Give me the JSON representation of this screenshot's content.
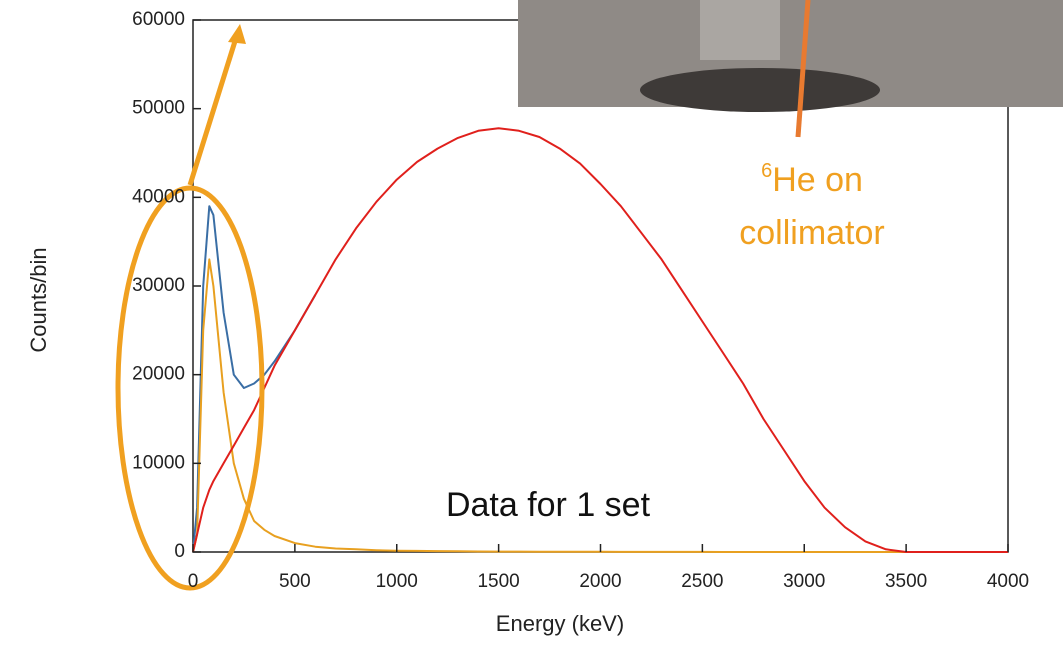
{
  "chart_data": {
    "type": "line",
    "x_label": "Energy (keV)",
    "y_label": "Counts/bin",
    "x": [
      0,
      20,
      50,
      80,
      100,
      150,
      200,
      250,
      300,
      350,
      400,
      500,
      600,
      700,
      800,
      900,
      1000,
      1100,
      1200,
      1300,
      1400,
      1500,
      1600,
      1700,
      1800,
      1900,
      2000,
      2100,
      2200,
      2300,
      2400,
      2500,
      2600,
      2700,
      2800,
      2900,
      3000,
      3100,
      3200,
      3300,
      3400,
      3500,
      4000
    ],
    "series": [
      {
        "color": "#3a6ea5",
        "values": [
          0,
          5000,
          30000,
          39000,
          38000,
          27000,
          20000,
          18500,
          19000,
          20000,
          21500,
          25000,
          29000,
          null,
          null,
          null,
          null,
          null,
          null,
          null,
          null,
          null,
          null,
          null,
          null,
          null,
          null,
          null,
          null,
          null,
          null,
          null,
          null,
          null,
          null,
          null,
          null,
          null,
          null,
          null,
          null,
          null,
          null
        ]
      },
      {
        "color": "#e8a020",
        "values": [
          0,
          2000,
          25000,
          33000,
          30000,
          18000,
          10000,
          6000,
          3500,
          2500,
          1800,
          1000,
          600,
          400,
          300,
          200,
          150,
          120,
          100,
          80,
          60,
          50,
          40,
          35,
          30,
          25,
          20,
          15,
          12,
          10,
          8,
          6,
          5,
          4,
          3,
          2,
          1,
          0,
          0,
          0,
          0,
          0,
          0
        ]
      },
      {
        "color": "#e0201c",
        "values": [
          0,
          2000,
          5000,
          7000,
          8000,
          10000,
          12000,
          14000,
          16000,
          18500,
          21000,
          25000,
          29000,
          33000,
          36500,
          39500,
          42000,
          44000,
          45500,
          46700,
          47500,
          47800,
          47500,
          46800,
          45500,
          43800,
          41500,
          39000,
          36000,
          33000,
          29500,
          26000,
          22500,
          19000,
          15000,
          11500,
          8000,
          5000,
          2800,
          1200,
          300,
          0,
          0
        ]
      }
    ],
    "xlim": [
      0,
      4000
    ],
    "xticks": [
      0,
      500,
      1000,
      1500,
      2000,
      2500,
      3000,
      3500,
      4000
    ],
    "ylim": [
      0,
      60000
    ],
    "yticks": [
      0,
      10000,
      20000,
      30000,
      40000,
      50000,
      60000
    ],
    "annotations": [
      "Data for 1 set"
    ],
    "callout": {
      "superscript": "6",
      "lines": [
        "He on",
        "collimator"
      ]
    }
  }
}
